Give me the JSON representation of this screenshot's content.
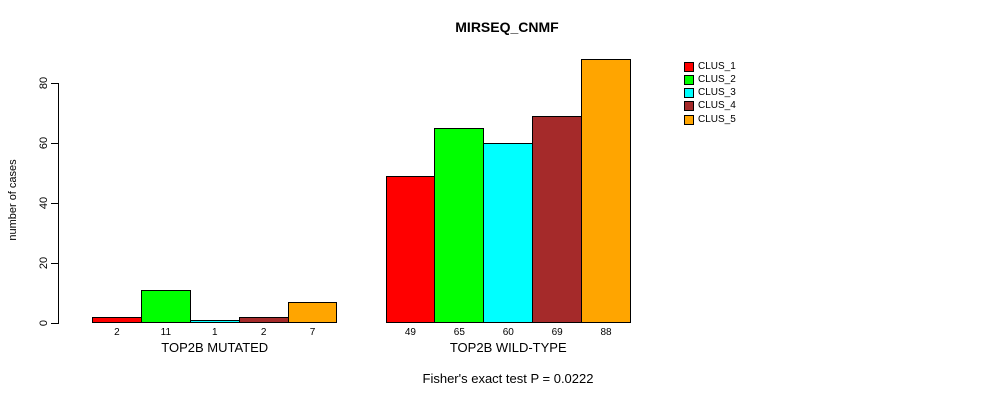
{
  "chart_data": {
    "type": "bar",
    "title": "MIRSEQ_CNMF",
    "ylabel": "number of cases",
    "xlabel": "",
    "footer": "Fisher's exact test P = 0.0222",
    "ylim": [
      0,
      88
    ],
    "yticks": [
      0,
      20,
      40,
      60,
      80
    ],
    "grid": false,
    "legend_position": "top-right",
    "bar_value_labels": true,
    "series": [
      {
        "name": "CLUS_1",
        "color": "#FF0000"
      },
      {
        "name": "CLUS_2",
        "color": "#00FF00"
      },
      {
        "name": "CLUS_3",
        "color": "#00FFFF"
      },
      {
        "name": "CLUS_4",
        "color": "#A52A2A"
      },
      {
        "name": "CLUS_5",
        "color": "#FFA500"
      }
    ],
    "groups": [
      {
        "label": "TOP2B MUTATED",
        "values": [
          2,
          11,
          1,
          2,
          7
        ]
      },
      {
        "label": "TOP2B WILD-TYPE",
        "values": [
          49,
          65,
          60,
          69,
          88
        ]
      }
    ]
  }
}
